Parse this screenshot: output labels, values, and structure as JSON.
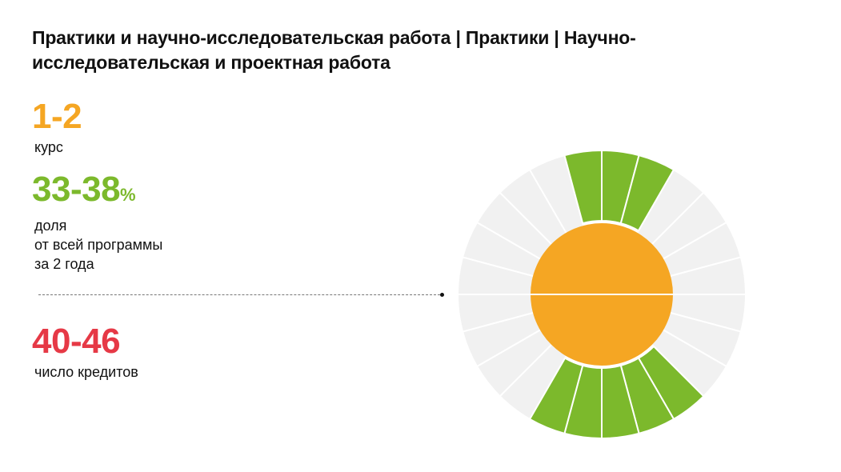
{
  "title": "Практики и научно-исследовательская работа | Практики | Научно-исследовательская и проектная работа",
  "stats": {
    "course": {
      "value": "1-2",
      "caption": "курс"
    },
    "share": {
      "value": "33-38",
      "unit": "%",
      "caption_lines": [
        "доля",
        "от всей программы",
        "за 2 года"
      ]
    },
    "credits": {
      "value": "40-46",
      "caption": "число кредитов"
    }
  },
  "colors": {
    "course": "#F5A623",
    "share": "#7CB92C",
    "credits": "#E63946",
    "segment_filled": "#7CB92C",
    "segment_empty": "#F1F1F1",
    "hub": "#F5A623",
    "separator": "#FFFFFF"
  },
  "wheel": {
    "segments_total": 24,
    "filled_segments_upper": 3,
    "filled_segments_lower": 5,
    "hub_halves": 2
  }
}
